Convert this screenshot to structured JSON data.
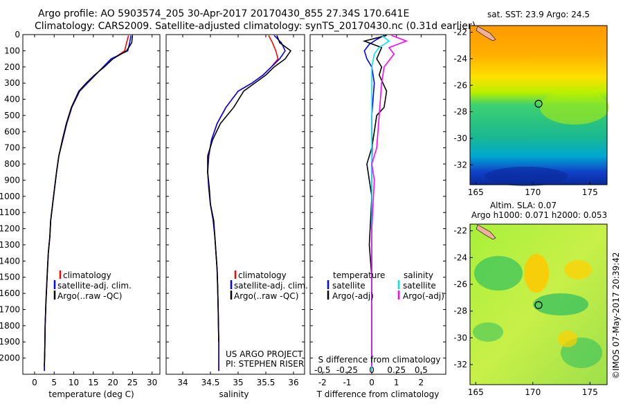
{
  "header": {
    "line1": "Argo profile: AO 5903574_205 30-Apr-2017 20170430_855 27.34S 170.641E",
    "line2": "Climatology: CARS2009. Satellite-adjusted climatology: synTS_20170430.nc (0.31d earlier)"
  },
  "colors": {
    "climatology": "#ff0000",
    "satellite": "#0000ff",
    "argo": "#000000",
    "salinity_satellite": "#00e5ee",
    "salinity_argo": "#ff00ff"
  },
  "chart_data": [
    {
      "type": "line",
      "id": "temperature",
      "xlabel": "temperature (deg C)",
      "ylabel": "",
      "xlim": [
        -3,
        32
      ],
      "ylim": [
        2100,
        0
      ],
      "xticks": [
        "0",
        "5",
        "10",
        "15",
        "20",
        "25",
        "30"
      ],
      "yticks": [
        "0",
        "100",
        "200",
        "300",
        "400",
        "500",
        "600",
        "700",
        "800",
        "900",
        "1000",
        "1100",
        "1200",
        "1300",
        "1400",
        "1500",
        "1600",
        "1700",
        "1800",
        "1900",
        "2000"
      ],
      "legend": [
        "climatology",
        "satellite-adj. clim.",
        "Argo(..raw -QC)"
      ],
      "series": [
        {
          "name": "climatology",
          "x": [
            24.0,
            23.5,
            23.0,
            20.0,
            17.5,
            15.5,
            13.5,
            11.5,
            9.5,
            8.2,
            7.2,
            6.2,
            5.6,
            5.1,
            4.6,
            4.1,
            3.9,
            3.5,
            3.3,
            3.1,
            2.9,
            2.7,
            2.6,
            2.5,
            2.5
          ],
          "y": [
            5,
            50,
            100,
            150,
            200,
            250,
            300,
            350,
            450,
            550,
            650,
            750,
            850,
            950,
            1050,
            1150,
            1250,
            1350,
            1450,
            1550,
            1650,
            1800,
            1950,
            2050,
            2080
          ]
        },
        {
          "name": "satellite-adj. clim.",
          "x": [
            24.6,
            24.3,
            23.8,
            19.5,
            17.5,
            15.5,
            13.5,
            11.5,
            9.5,
            8.2,
            7.2,
            6.2,
            5.6,
            5.1,
            4.6,
            4.1,
            3.9,
            3.5,
            3.3,
            3.1,
            2.9,
            2.7,
            2.6,
            2.5,
            2.5
          ],
          "y": [
            5,
            50,
            100,
            150,
            200,
            250,
            300,
            350,
            450,
            550,
            650,
            750,
            850,
            950,
            1050,
            1150,
            1250,
            1350,
            1450,
            1550,
            1650,
            1800,
            1950,
            2050,
            2080
          ]
        },
        {
          "name": "Argo(..raw -QC)",
          "x": [
            25.0,
            24.8,
            23.5,
            20.0,
            17.8,
            15.3,
            13.2,
            11.3,
            9.4,
            8.1,
            7.1,
            6.2,
            5.6,
            5.1,
            4.6,
            4.1,
            3.9,
            3.5,
            3.3,
            3.1,
            2.9,
            2.7,
            2.6,
            2.5
          ],
          "y": [
            5,
            50,
            100,
            150,
            200,
            250,
            300,
            350,
            450,
            550,
            650,
            750,
            850,
            950,
            1050,
            1150,
            1250,
            1350,
            1450,
            1550,
            1650,
            1800,
            1950,
            2050
          ]
        }
      ]
    },
    {
      "type": "line",
      "id": "salinity",
      "xlabel": "salinity",
      "xlim": [
        33.7,
        36.2
      ],
      "ylim": [
        2100,
        0
      ],
      "xticks": [
        "34",
        "34.5",
        "35",
        "35.5",
        "36"
      ],
      "legend": [
        "climatology",
        "satellite-adj. clim.",
        "Argo(..raw -QC)"
      ],
      "annotation": [
        "US ARGO PROJECT",
        "PI: STEPHEN RISER"
      ],
      "series": [
        {
          "name": "climatology",
          "x": [
            35.55,
            35.62,
            35.68,
            35.72,
            35.6,
            35.45,
            35.25,
            35.0,
            34.78,
            34.62,
            34.52,
            34.47,
            34.45,
            34.47,
            34.5,
            34.55,
            34.58,
            34.6,
            34.62,
            34.63,
            34.64,
            34.65,
            34.65
          ],
          "y": [
            5,
            50,
            100,
            150,
            200,
            250,
            300,
            350,
            450,
            550,
            650,
            750,
            850,
            950,
            1050,
            1150,
            1250,
            1350,
            1450,
            1550,
            1700,
            1900,
            2080
          ]
        },
        {
          "name": "satellite-adj. clim.",
          "x": [
            35.65,
            35.78,
            35.85,
            35.75,
            35.6,
            35.45,
            35.25,
            35.0,
            34.78,
            34.62,
            34.52,
            34.47,
            34.45,
            34.47,
            34.5,
            34.55,
            34.58,
            34.6,
            34.62,
            34.63,
            34.64,
            34.65,
            34.65
          ],
          "y": [
            5,
            50,
            100,
            150,
            200,
            250,
            300,
            350,
            450,
            550,
            650,
            750,
            850,
            950,
            1050,
            1150,
            1250,
            1350,
            1450,
            1550,
            1700,
            1900,
            2080
          ]
        },
        {
          "name": "Argo(..raw -QC)",
          "x": [
            35.7,
            35.75,
            35.95,
            35.85,
            35.65,
            35.5,
            35.3,
            35.1,
            34.92,
            34.68,
            34.54,
            34.45,
            34.45,
            34.48,
            34.5,
            34.56,
            34.58,
            34.6,
            34.62,
            34.63,
            34.64,
            34.65
          ],
          "y": [
            5,
            50,
            100,
            150,
            200,
            250,
            300,
            350,
            450,
            550,
            650,
            750,
            850,
            950,
            1050,
            1150,
            1250,
            1350,
            1450,
            1550,
            1700,
            1900
          ]
        }
      ]
    },
    {
      "type": "line",
      "id": "difference",
      "xlabel": "T difference from climatology",
      "xlabel_top": "S difference from climatology",
      "xlim": [
        -2.5,
        3.0
      ],
      "ylim": [
        2100,
        0
      ],
      "xticks": [
        "-2",
        "-1",
        "0",
        "1",
        "2"
      ],
      "xticks_top": [
        "-0.5",
        "-0.25",
        "0",
        "0.25",
        "0.5"
      ],
      "legend_headers": [
        "temperature",
        "salinity"
      ],
      "legend": [
        "satellite",
        "Argo(-adj)",
        "satellite",
        "Argo(-adj)"
      ],
      "series": [
        {
          "name": "satellite",
          "x": [
            0.5,
            0.2,
            -0.1,
            -0.3,
            -0.2,
            0.0,
            0.1,
            0.05,
            0.0,
            0.0,
            0.02,
            0.0,
            0.0,
            0.0,
            0.0,
            0.0,
            0.0,
            0.0
          ],
          "y": [
            5,
            30,
            60,
            100,
            150,
            200,
            300,
            400,
            500,
            600,
            700,
            800,
            900,
            1000,
            1200,
            1500,
            1800,
            2080
          ]
        },
        {
          "name": "Argo(-adj)",
          "x": [
            0.6,
            -0.3,
            0.4,
            0.2,
            0.4,
            0.3,
            0.6,
            0.5,
            0.2,
            0.1,
            0.0,
            -0.2,
            -0.1,
            0.0,
            -0.1,
            0.0,
            0.0,
            0.0
          ],
          "y": [
            5,
            40,
            80,
            150,
            200,
            250,
            350,
            450,
            500,
            600,
            700,
            800,
            900,
            1000,
            1300,
            1500,
            1800,
            2050
          ]
        },
        {
          "name": "satellite",
          "x": [
            0.4,
            0.7,
            0.3,
            0.1,
            0.0,
            0.0,
            0.0,
            0.0,
            0.0,
            0.0,
            0.0,
            0.0,
            0.0
          ],
          "y": [
            5,
            40,
            80,
            120,
            200,
            300,
            500,
            700,
            900,
            1200,
            1500,
            1800,
            2080
          ]
        },
        {
          "name": "Argo(-adj)",
          "x": [
            0.8,
            1.4,
            0.7,
            0.9,
            0.5,
            0.4,
            0.3,
            0.2,
            0.0,
            0.1,
            0.0,
            0.0,
            0.0
          ],
          "y": [
            5,
            40,
            80,
            120,
            200,
            300,
            500,
            700,
            800,
            900,
            1200,
            1600,
            2050
          ]
        }
      ]
    },
    {
      "type": "heatmap",
      "id": "sst-map",
      "title": "sat. SST: 23.9  Argo: 24.5",
      "xlim": [
        164.5,
        176.5
      ],
      "ylim": [
        -33.5,
        -21.5
      ],
      "xticks": [
        "165",
        "170",
        "175"
      ],
      "yticks": [
        "-22",
        "-24",
        "-26",
        "-28",
        "-30",
        "-32"
      ],
      "marker": {
        "lon": 170.641,
        "lat": -27.34
      }
    },
    {
      "type": "heatmap",
      "id": "sla-map",
      "title_lines": [
        "Altim. SLA: 0.07",
        "Argo h1000: 0.071 h2000: 0.053"
      ],
      "xlim": [
        164.5,
        176.5
      ],
      "ylim": [
        -33.5,
        -21.5
      ],
      "xticks": [
        "165",
        "170",
        "175"
      ],
      "yticks": [
        "-22",
        "-24",
        "-26",
        "-28",
        "-30",
        "-32"
      ],
      "marker": {
        "lon": 170.641,
        "lat": -27.34
      }
    }
  ],
  "footer": {
    "stamp": "©IMOS 07-May-2017 20:39:42"
  }
}
